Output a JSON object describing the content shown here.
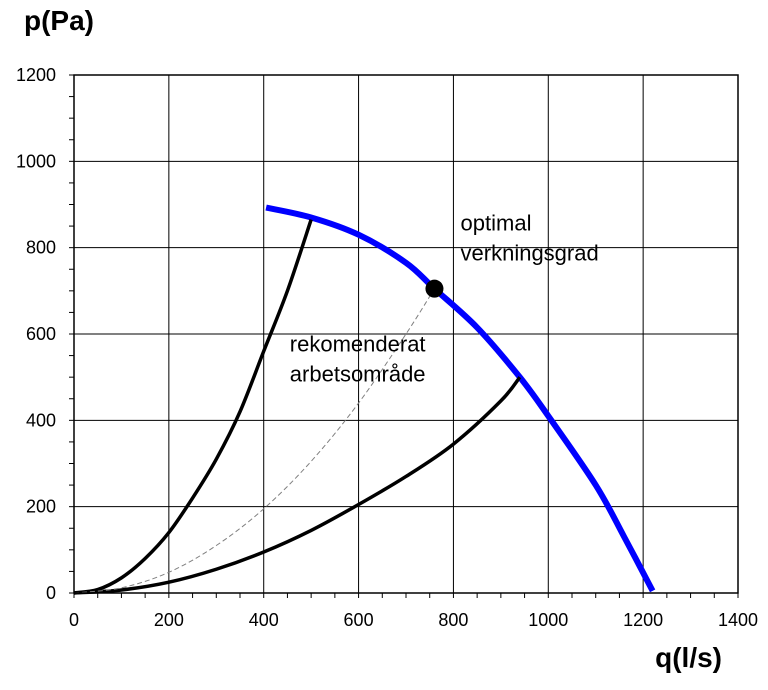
{
  "chart_data": {
    "type": "line",
    "xlabel": "q(l/s)",
    "ylabel": "p(Pa)",
    "xlim": [
      0,
      1400
    ],
    "ylim": [
      0,
      1200
    ],
    "xticks": [
      0,
      200,
      400,
      600,
      800,
      1000,
      1200,
      1400
    ],
    "yticks": [
      0,
      200,
      400,
      600,
      800,
      1000,
      1200
    ],
    "xtick_labels": [
      "0",
      "200",
      "400",
      "600",
      "800",
      "1000",
      "1200",
      "1400"
    ],
    "ytick_labels": [
      "0",
      "200",
      "400",
      "600",
      "800",
      "1000",
      "1200"
    ],
    "grid": true,
    "series": [
      {
        "color": "#0000ff",
        "style": "solid",
        "x": [
          405,
          500,
          600,
          700,
          760,
          850,
          940,
          1000,
          1100,
          1160,
          1220
        ],
        "y": [
          893,
          870,
          830,
          765,
          705,
          615,
          500,
          410,
          250,
          130,
          5
        ]
      },
      {
        "color": "#000000",
        "style": "solid",
        "x": [
          0,
          50,
          100,
          150,
          200,
          250,
          300,
          350,
          400,
          450,
          500
        ],
        "y": [
          0,
          8,
          35,
          80,
          140,
          220,
          310,
          420,
          560,
          700,
          865
        ]
      },
      {
        "color": "#000000",
        "style": "solid",
        "x": [
          0,
          100,
          200,
          300,
          400,
          500,
          600,
          700,
          800,
          900,
          940
        ],
        "y": [
          0,
          7,
          25,
          55,
          95,
          145,
          205,
          270,
          345,
          445,
          500
        ]
      },
      {
        "color": "#808080",
        "style": "dashed",
        "x": [
          0,
          100,
          200,
          300,
          400,
          500,
          600,
          700,
          760
        ],
        "y": [
          0,
          12,
          48,
          110,
          195,
          305,
          440,
          600,
          705
        ]
      }
    ],
    "points": [
      {
        "x": 760,
        "y": 705,
        "color": "#000000"
      }
    ],
    "annotations": [
      {
        "lines": [
          "optimal",
          "verkningsgrad"
        ],
        "x": 815,
        "y": 840
      },
      {
        "lines": [
          "rekomenderat",
          "arbetsområde"
        ],
        "x": 455,
        "y": 560
      }
    ]
  }
}
